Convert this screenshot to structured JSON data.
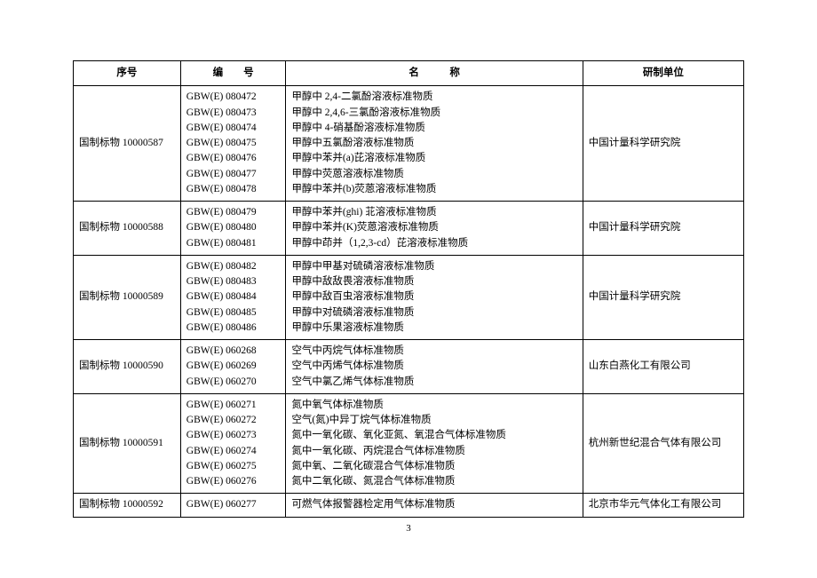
{
  "headers": {
    "seq": "序号",
    "code": "编　　号",
    "name": "名　　　称",
    "org": "研制单位"
  },
  "rows": [
    {
      "seq": "国制标物 10000587",
      "codes": [
        "GBW(E) 080472",
        "GBW(E) 080473",
        "GBW(E) 080474",
        "GBW(E) 080475",
        "GBW(E) 080476",
        "GBW(E) 080477",
        "GBW(E) 080478"
      ],
      "names": [
        "甲醇中 2,4-二氯酚溶液标准物质",
        "甲醇中 2,4,6-三氯酚溶液标准物质",
        "甲醇中 4-硝基酚溶液标准物质",
        "甲醇中五氯酚溶液标准物质",
        "甲醇中苯并(a)芘溶液标准物质",
        "甲醇中荧蒽溶液标准物质",
        "甲醇中苯并(b)荧蒽溶液标准物质"
      ],
      "org": "中国计量科学研究院"
    },
    {
      "seq": "国制标物 10000588",
      "codes": [
        "GBW(E) 080479",
        "GBW(E) 080480",
        "GBW(E) 080481"
      ],
      "names": [
        "甲醇中苯并(ghi) 苝溶液标准物质",
        "甲醇中苯并(K)荧蒽溶液标准物质",
        "甲醇中茚并（1,2,3-cd）芘溶液标准物质"
      ],
      "org": "中国计量科学研究院"
    },
    {
      "seq": "国制标物 10000589",
      "codes": [
        "GBW(E) 080482",
        "GBW(E) 080483",
        "GBW(E) 080484",
        "GBW(E) 080485",
        "GBW(E) 080486"
      ],
      "names": [
        "甲醇中甲基对硫磷溶液标准物质",
        "甲醇中敌敌畏溶液标准物质",
        "甲醇中敌百虫溶液标准物质",
        "甲醇中对硫磷溶液标准物质",
        "甲醇中乐果溶液标准物质"
      ],
      "org": "中国计量科学研究院"
    },
    {
      "seq": "国制标物 10000590",
      "codes": [
        "GBW(E) 060268",
        "GBW(E) 060269",
        "GBW(E) 060270"
      ],
      "names": [
        "空气中丙烷气体标准物质",
        "空气中丙烯气体标准物质",
        "空气中氯乙烯气体标准物质"
      ],
      "org": "山东白燕化工有限公司"
    },
    {
      "seq": "国制标物 10000591",
      "codes": [
        "GBW(E) 060271",
        "GBW(E) 060272",
        "GBW(E) 060273",
        "GBW(E) 060274",
        "GBW(E) 060275",
        "GBW(E) 060276"
      ],
      "names": [
        "氮中氧气体标准物质",
        "空气(氮)中异丁烷气体标准物质",
        "氮中一氧化碳、氧化亚氮、氧混合气体标准物质",
        "氮中一氧化碳、丙烷混合气体标准物质",
        "氮中氧、二氧化碳混合气体标准物质",
        "氮中二氧化碳、氮混合气体标准物质"
      ],
      "org": "杭州新世纪混合气体有限公司"
    },
    {
      "seq": "国制标物 10000592",
      "codes": [
        "GBW(E) 060277"
      ],
      "names": [
        "可燃气体报警器检定用气体标准物质"
      ],
      "org": "北京市华元气体化工有限公司"
    }
  ],
  "page_number": "3"
}
